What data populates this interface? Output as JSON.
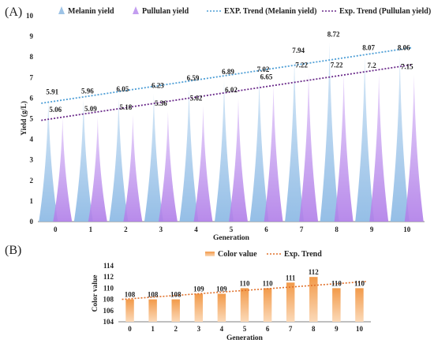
{
  "chart_data": [
    {
      "panel": "(A)",
      "type": "area",
      "categories": [
        "0",
        "1",
        "2",
        "3",
        "4",
        "5",
        "6",
        "7",
        "8",
        "9",
        "10"
      ],
      "xlabel": "Generation",
      "ylabel": "Yield (g/L)",
      "ylim": [
        0,
        10
      ],
      "yticks": [
        "0",
        "1",
        "2",
        "3",
        "4",
        "5",
        "6",
        "7",
        "8",
        "9",
        "10"
      ],
      "series": [
        {
          "name": "Melanin yield",
          "values": [
            5.91,
            5.96,
            6.05,
            6.23,
            6.59,
            6.89,
            7.02,
            7.94,
            8.72,
            8.07,
            8.06
          ],
          "labels": [
            "5.91",
            "5.96",
            "6.05",
            "6.23",
            "6.59",
            "6.89",
            "7.02",
            "7.94",
            "8.72",
            "8.07",
            "8.06"
          ],
          "color": "#9dc3e6"
        },
        {
          "name": "Pullulan yield",
          "values": [
            5.06,
            5.09,
            5.18,
            5.36,
            5.62,
            6.02,
            6.65,
            7.22,
            7.22,
            7.2,
            7.15
          ],
          "labels": [
            "5.06",
            "5.09",
            "5.18",
            "5.36",
            "5.62",
            "6.02",
            "6.65",
            "7.22",
            "7.22",
            "7.2",
            "7.15"
          ],
          "color": "#c39ef0"
        }
      ],
      "trends": [
        {
          "name": "EXP. Trend (Melanin yield)",
          "start": 5.75,
          "end": 8.45,
          "color": "#4f9fd6"
        },
        {
          "name": "Exp. Trend (Pullulan yield)",
          "start": 4.92,
          "end": 7.62,
          "color": "#6a2a8a"
        }
      ],
      "legend": "top",
      "grid": false
    },
    {
      "panel": "(B)",
      "type": "bar",
      "categories": [
        "0",
        "1",
        "2",
        "3",
        "4",
        "5",
        "6",
        "7",
        "8",
        "9",
        "10"
      ],
      "xlabel": "Generation",
      "ylabel": "Color value",
      "ylim": [
        104,
        114
      ],
      "yticks": [
        "104",
        "106",
        "108",
        "110",
        "112",
        "114"
      ],
      "series": [
        {
          "name": "Color value",
          "values": [
            108,
            108,
            108,
            109,
            109,
            110,
            110,
            111,
            112,
            110,
            110
          ],
          "labels": [
            "108",
            "108",
            "108",
            "109",
            "109",
            "110",
            "110",
            "111",
            "112",
            "110",
            "110"
          ],
          "color": "#f0a060"
        }
      ],
      "trends": [
        {
          "name": "Exp. Trend",
          "start": 108.0,
          "end": 111.2,
          "color": "#e0702a"
        }
      ],
      "legend": "top",
      "grid": false
    }
  ]
}
